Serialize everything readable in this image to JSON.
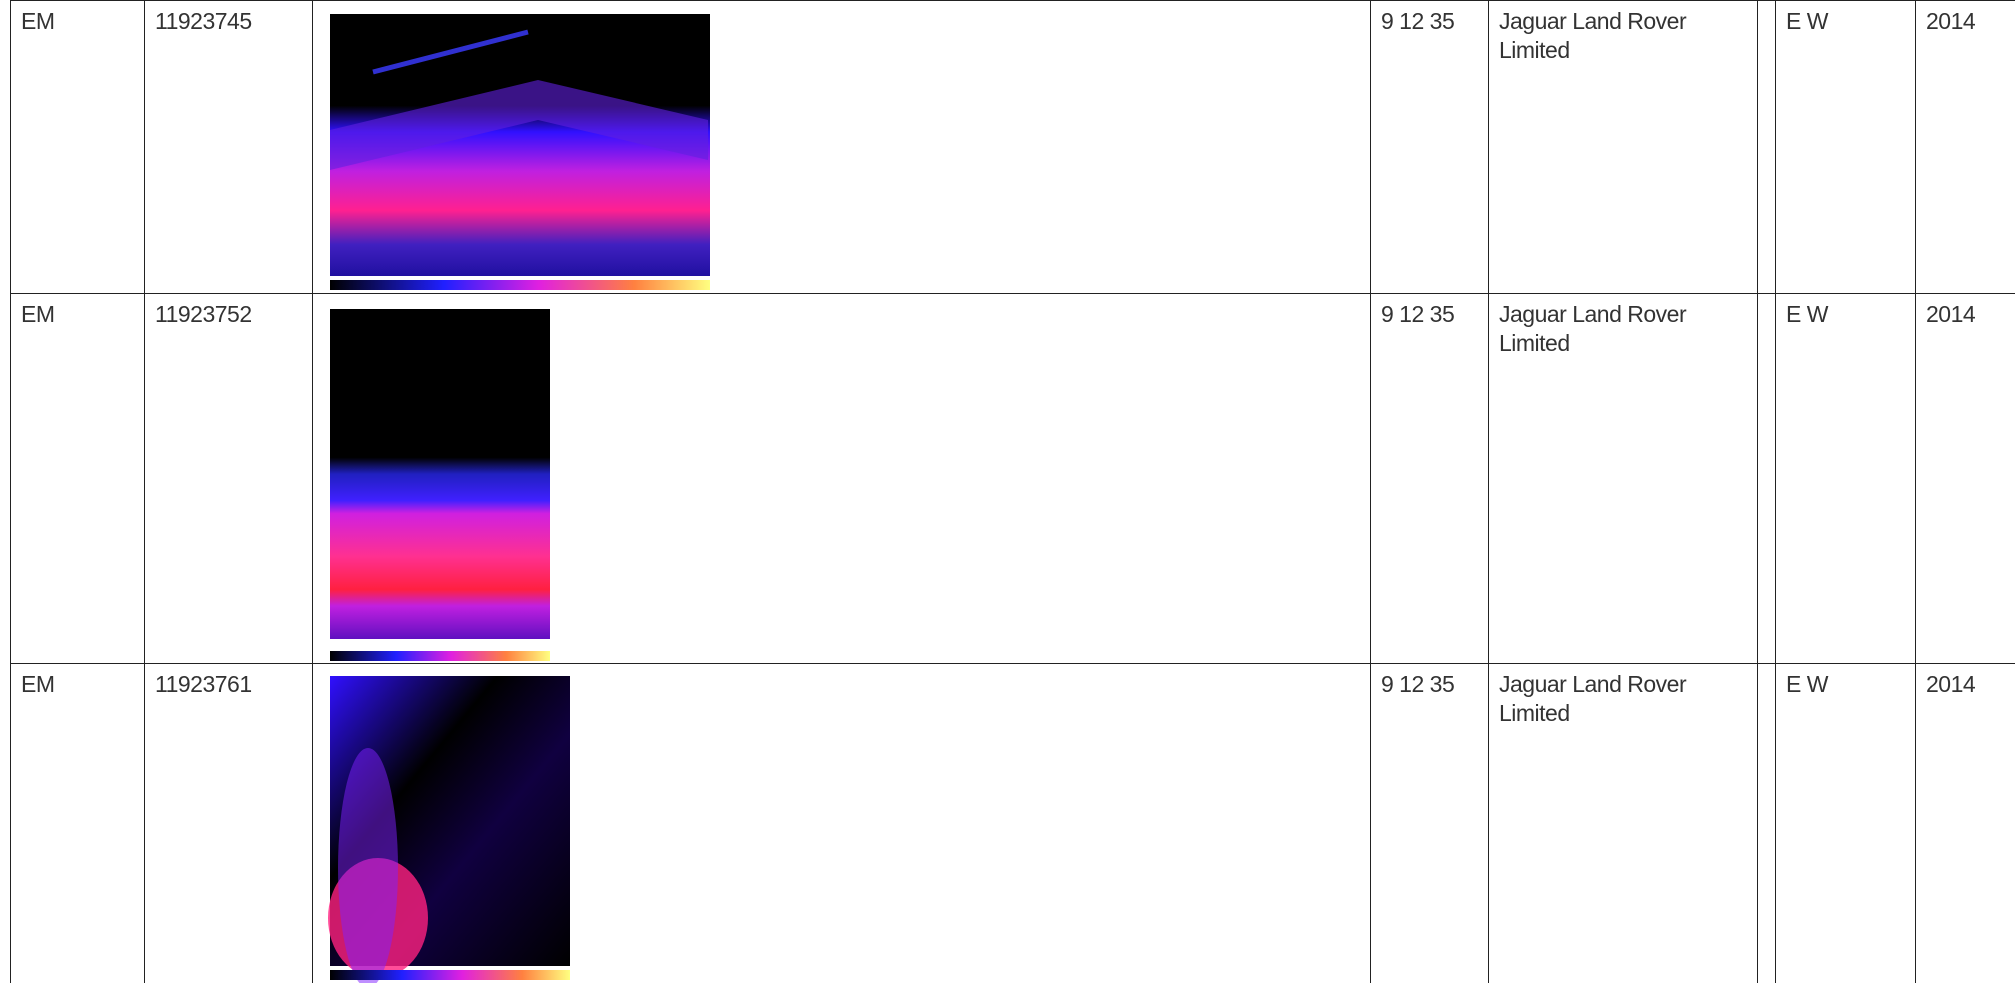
{
  "table": {
    "rows": [
      [
        "EM",
        "11923745",
        "9 12 35",
        "Jaguar Land Rover Limited",
        "E W",
        "2014"
      ],
      [
        "EM",
        "11923752",
        "9 12 35",
        "Jaguar Land Rover Limited",
        "E W",
        "2014"
      ],
      [
        "EM",
        "11923761",
        "9 12 35",
        "Jaguar Land Rover Limited",
        "E W",
        "2014"
      ]
    ]
  }
}
